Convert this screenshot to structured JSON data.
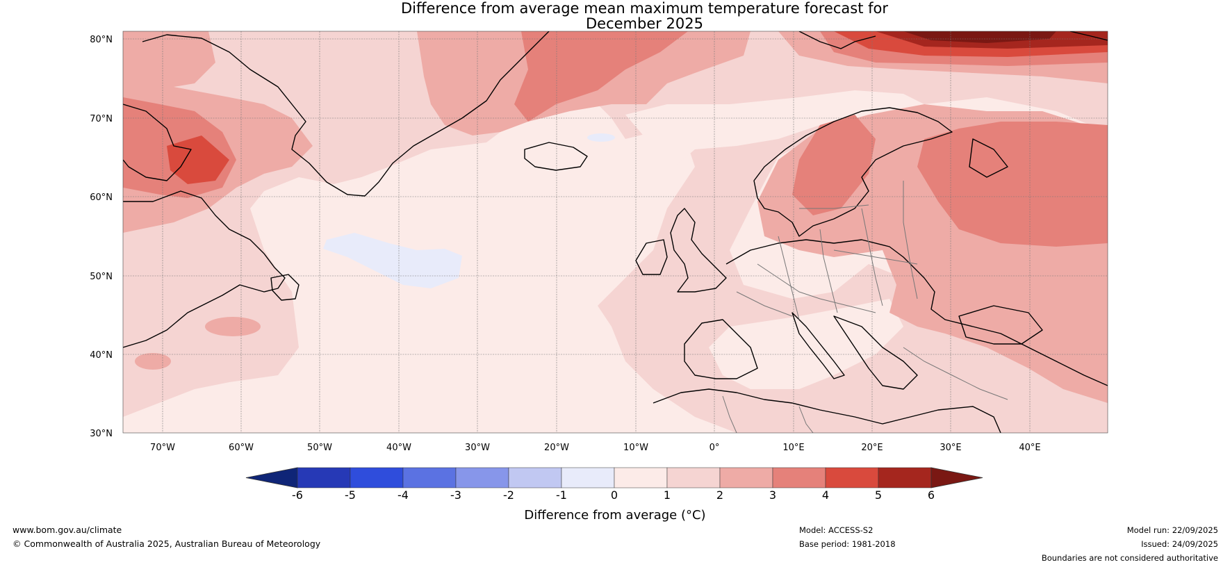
{
  "title": {
    "line1": "Difference from average mean maximum temperature forecast for",
    "line2": "December 2025"
  },
  "map": {
    "lat_labels": [
      "80°N",
      "70°N",
      "60°N",
      "50°N",
      "40°N",
      "30°N"
    ],
    "lon_labels": [
      "70°W",
      "60°W",
      "50°W",
      "40°W",
      "30°W",
      "20°W",
      "10°W",
      "0°",
      "10°E",
      "20°E",
      "30°E",
      "40°E"
    ]
  },
  "colorbar": {
    "ticks": [
      "-6",
      "-5",
      "-4",
      "-3",
      "-2",
      "-1",
      "0",
      "1",
      "2",
      "3",
      "4",
      "5",
      "6"
    ],
    "colors": [
      "#0f2577",
      "#2639b6",
      "#2f4ddc",
      "#5b72e2",
      "#8796ea",
      "#c1c8f2",
      "#e8ebfa",
      "#fcebe8",
      "#f5d4d2",
      "#eeaba6",
      "#e5817a",
      "#d94a3d",
      "#a5261e",
      "#7a1813"
    ],
    "label": "Difference from average (°C)"
  },
  "footer": {
    "website": "www.bom.gov.au/climate",
    "copyright": "© Commonwealth of Australia 2025, Australian Bureau of Meteorology",
    "model": "Model: ACCESS-S2",
    "base_period": "Base period: 1981-2018",
    "model_run": "Model run: 22/09/2025",
    "issued": "Issued: 24/09/2025",
    "disclaimer": "Boundaries are not considered authoritative"
  }
}
